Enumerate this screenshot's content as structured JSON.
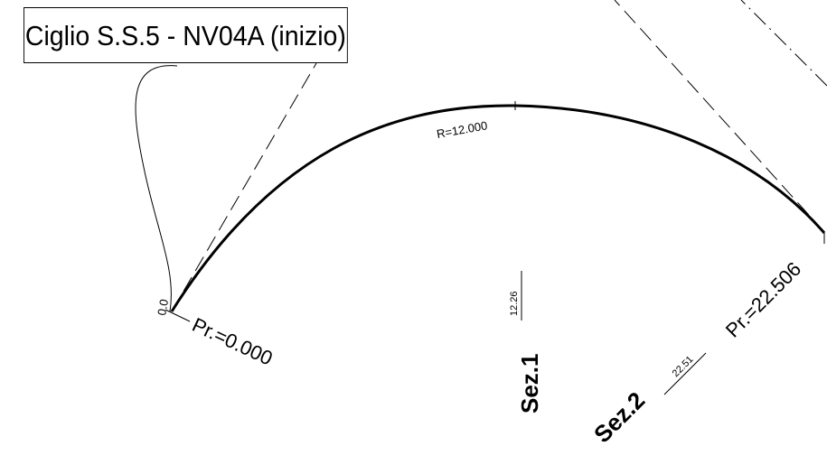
{
  "callout": {
    "text": "Ciglio S.S.5 - NV04A (inizio)"
  },
  "curve": {
    "radius_label": "R=12.000"
  },
  "start_marker": {
    "label": "0.0",
    "progressive_label": "Pr.=0.000"
  },
  "end_marker": {
    "progressive_label": "Pr.=22.506"
  },
  "sections": [
    {
      "name": "Sez.1",
      "value": "12.26"
    },
    {
      "name": "Sez.2",
      "value": "22.51"
    }
  ],
  "colors": {
    "ink": "#000000",
    "background": "#ffffff"
  }
}
